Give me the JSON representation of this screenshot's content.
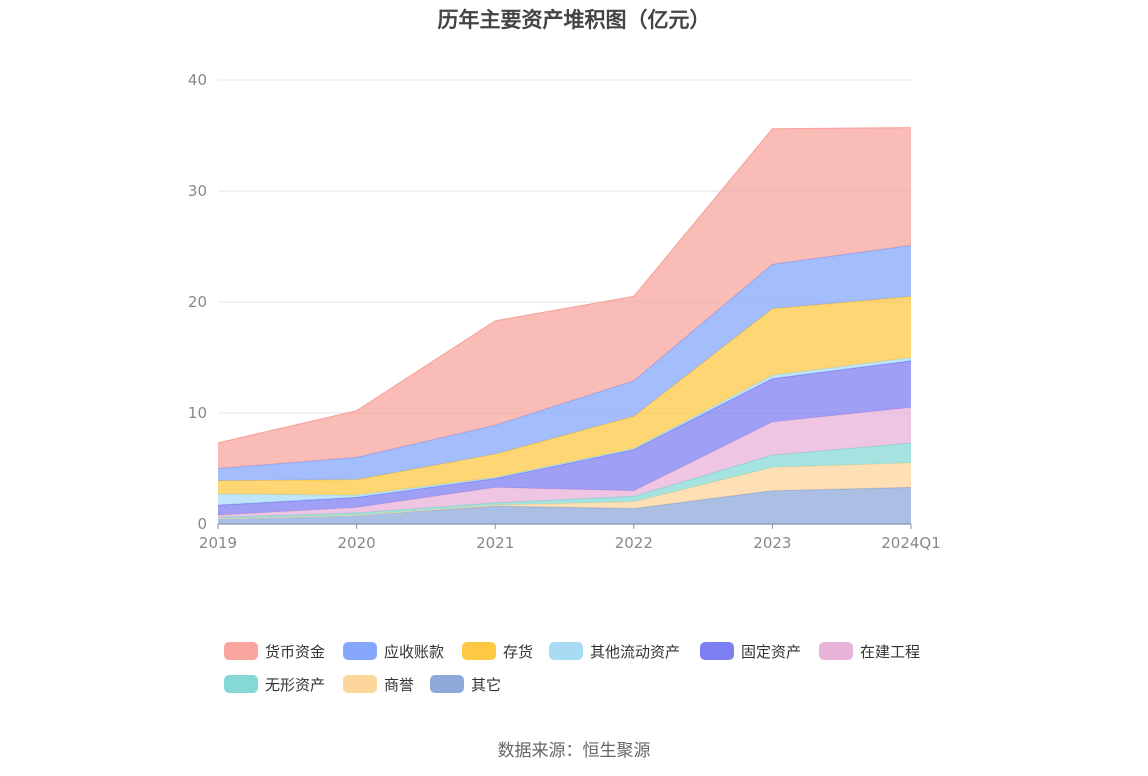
{
  "title": "历年主要资产堆积图（亿元）",
  "source": "数据来源：恒生聚源",
  "chart_data": {
    "type": "area",
    "stacked": true,
    "categories": [
      "2019",
      "2020",
      "2021",
      "2022",
      "2023",
      "2024Q1"
    ],
    "ylim": [
      0,
      40
    ],
    "yticks": [
      "0",
      "10",
      "20",
      "30",
      "40"
    ],
    "grid": true,
    "legend_position": "bottom",
    "series": [
      {
        "name": "其它",
        "color": "#8eaad9",
        "values": [
          0.5,
          0.8,
          1.6,
          1.4,
          3.0,
          3.3
        ]
      },
      {
        "name": "商誉",
        "color": "#fdd69b",
        "values": [
          0.0,
          0.0,
          0.1,
          0.6,
          2.1,
          2.2
        ]
      },
      {
        "name": "无形资产",
        "color": "#85d9d4",
        "values": [
          0.1,
          0.2,
          0.2,
          0.5,
          1.1,
          1.8
        ]
      },
      {
        "name": "在建工程",
        "color": "#e8b3d9",
        "values": [
          0.2,
          0.5,
          1.4,
          0.5,
          3.0,
          3.2
        ]
      },
      {
        "name": "固定资产",
        "color": "#7d7ff2",
        "values": [
          0.9,
          0.9,
          0.8,
          3.7,
          3.9,
          4.2
        ]
      },
      {
        "name": "其他流动资产",
        "color": "#a8dcf5",
        "values": [
          1.0,
          0.2,
          0.1,
          0.1,
          0.3,
          0.3
        ]
      },
      {
        "name": "存货",
        "color": "#fdc844",
        "values": [
          1.2,
          1.4,
          2.1,
          2.9,
          6.0,
          5.5
        ]
      },
      {
        "name": "应收账款",
        "color": "#86a7fb",
        "values": [
          1.1,
          2.0,
          2.6,
          3.2,
          4.0,
          4.6
        ]
      },
      {
        "name": "货币资金",
        "color": "#f8a59d",
        "values": [
          2.3,
          4.2,
          9.4,
          7.6,
          12.2,
          10.6
        ]
      }
    ]
  },
  "legend": {
    "items": [
      {
        "name": "货币资金",
        "color": "#f8a59d"
      },
      {
        "name": "应收账款",
        "color": "#86a7fb"
      },
      {
        "name": "存货",
        "color": "#fdc844"
      },
      {
        "name": "其他流动资产",
        "color": "#a8dcf5"
      },
      {
        "name": "固定资产",
        "color": "#7d7ff2"
      },
      {
        "name": "在建工程",
        "color": "#e8b3d9"
      },
      {
        "name": "无形资产",
        "color": "#85d9d4"
      },
      {
        "name": "商誉",
        "color": "#fdd69b"
      },
      {
        "name": "其它",
        "color": "#8eaad9"
      }
    ]
  }
}
